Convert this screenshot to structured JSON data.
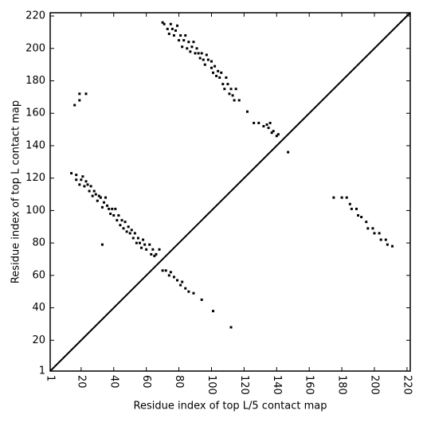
{
  "chart_data": {
    "type": "scatter",
    "xlabel": "Residue index of top L/5 contact map",
    "ylabel": "Residue index of top L contact map",
    "color": "#000000",
    "xlim": [
      1,
      222
    ],
    "ylim": [
      1,
      222
    ],
    "xticks": [
      1,
      20,
      40,
      60,
      80,
      100,
      120,
      140,
      160,
      180,
      200,
      220
    ],
    "yticks": [
      1,
      20,
      40,
      60,
      80,
      100,
      120,
      140,
      160,
      180,
      200,
      220
    ],
    "x": [
      70,
      71,
      73,
      75,
      74,
      76,
      77,
      78,
      79,
      80,
      81,
      82,
      83,
      84,
      85,
      86,
      87,
      88,
      89,
      90,
      91,
      92,
      93,
      94,
      95,
      96,
      97,
      98,
      100,
      100,
      101,
      102,
      103,
      104,
      105,
      106,
      107,
      108,
      109,
      110,
      111,
      112,
      113,
      114,
      115,
      117,
      122,
      126,
      129,
      132,
      134,
      135,
      136,
      137,
      138,
      140,
      141,
      147,
      16,
      19,
      19,
      23,
      14,
      17,
      17,
      19,
      20,
      21,
      22,
      23,
      24,
      25,
      26,
      27,
      28,
      29,
      30,
      31,
      32,
      33,
      34,
      35,
      36,
      37,
      38,
      39,
      40,
      41,
      42,
      43,
      44,
      45,
      46,
      47,
      48,
      49,
      50,
      51,
      52,
      53,
      54,
      55,
      56,
      57,
      58,
      59,
      60,
      62,
      63,
      64,
      65,
      66,
      68,
      33,
      70,
      72,
      74,
      75,
      77,
      79,
      81,
      82,
      84,
      86,
      89,
      94,
      101,
      112,
      175,
      180,
      183,
      185,
      186,
      189,
      190,
      192,
      195,
      196,
      199,
      200,
      203,
      204,
      207,
      208,
      211
    ],
    "values": [
      216,
      215,
      212,
      215,
      209,
      212,
      208,
      211,
      214,
      205,
      208,
      201,
      205,
      208,
      200,
      204,
      198,
      201,
      204,
      197,
      200,
      197,
      194,
      197,
      193,
      190,
      196,
      193,
      188,
      192,
      185,
      189,
      183,
      186,
      182,
      185,
      178,
      175,
      182,
      178,
      172,
      175,
      171,
      168,
      175,
      168,
      161,
      154,
      154,
      152,
      153,
      151,
      154,
      148,
      149,
      146,
      147,
      136,
      165,
      168,
      172,
      172,
      123,
      122,
      119,
      116,
      119,
      121,
      115,
      118,
      116,
      112,
      115,
      109,
      112,
      110,
      106,
      109,
      108,
      102,
      105,
      108,
      103,
      101,
      98,
      101,
      97,
      101,
      94,
      97,
      91,
      94,
      89,
      93,
      87,
      90,
      86,
      88,
      83,
      86,
      80,
      83,
      80,
      77,
      82,
      79,
      76,
      79,
      73,
      76,
      72,
      73,
      76,
      79,
      63,
      63,
      60,
      62,
      59,
      57,
      54,
      56,
      52,
      50,
      49,
      45,
      38,
      28,
      108,
      108,
      108,
      104,
      101,
      101,
      97,
      96,
      93,
      89,
      89,
      86,
      86,
      82,
      82,
      79,
      78
    ]
  }
}
